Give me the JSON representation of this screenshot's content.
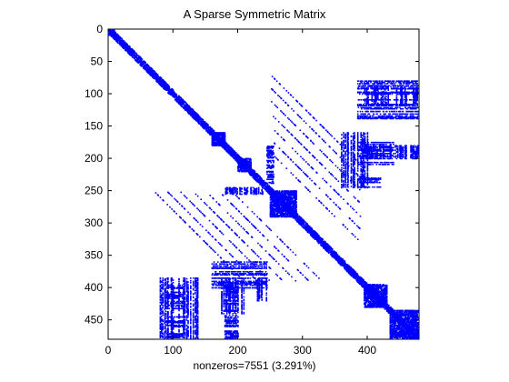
{
  "chart_data": {
    "type": "spy",
    "title": "A Sparse Symmetric Matrix",
    "xlabel": "nonzeros=7551 (3.291%)",
    "ylabel": "",
    "size": [
      479,
      479
    ],
    "nonzeros": 7551,
    "density_percent": 3.291,
    "xlim": [
      0,
      480
    ],
    "ylim": [
      480,
      0
    ],
    "x_ticks": [
      0,
      100,
      200,
      300,
      400
    ],
    "y_ticks": [
      0,
      50,
      100,
      150,
      200,
      250,
      300,
      350,
      400,
      450
    ],
    "grid": false,
    "marker_color": "#0000ff",
    "structure": {
      "diagonal_bandwidth": 6,
      "dense_blocks": [
        {
          "rows": [
            0,
            10
          ],
          "cols": [
            0,
            10
          ]
        },
        {
          "rows": [
            160,
            180
          ],
          "cols": [
            160,
            180
          ]
        },
        {
          "rows": [
            200,
            220
          ],
          "cols": [
            200,
            220
          ]
        },
        {
          "rows": [
            250,
            290
          ],
          "cols": [
            250,
            290
          ]
        },
        {
          "rows": [
            395,
            430
          ],
          "cols": [
            395,
            430
          ]
        },
        {
          "rows": [
            435,
            478
          ],
          "cols": [
            435,
            478
          ]
        }
      ],
      "column_strips": [
        {
          "cols": [
            80,
            140
          ],
          "rows": [
            385,
            478
          ]
        },
        {
          "cols": [
            175,
            210
          ],
          "rows": [
            385,
            440
          ]
        },
        {
          "cols": [
            230,
            245
          ],
          "rows": [
            385,
            420
          ]
        },
        {
          "cols": [
            180,
            240
          ],
          "rows": [
            245,
            255
          ]
        },
        {
          "cols": [
            395,
            478
          ],
          "rows": [
            90,
            115
          ]
        },
        {
          "cols": [
            395,
            478
          ],
          "rows": [
            180,
            200
          ]
        },
        {
          "cols": [
            360,
            400
          ],
          "rows": [
            160,
            245
          ]
        }
      ]
    }
  }
}
